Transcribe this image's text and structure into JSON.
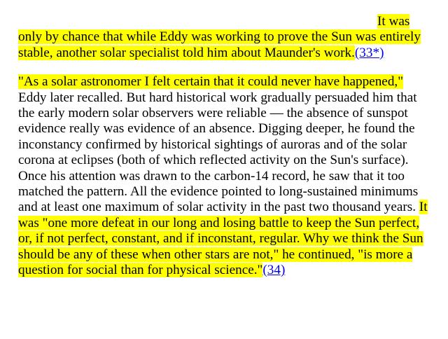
{
  "article": {
    "paragraph1": {
      "highlighted_text": "It was only by chance that while Eddy was working to prove the Sun was entirely stable, another solar specialist told him about Maunder's work.",
      "footnote_link": "(33*)"
    },
    "paragraph2": {
      "highlighted_quote": "\"As a solar astronomer I felt certain that it could never have happened,\"",
      "body_text": " Eddy later recalled. But hard historical work gradually persuaded him that the early modern solar observers were reliable — the absence of sunspot evidence really was evidence of an absence. Digging deeper, he found the inconstancy confirmed by historical sightings of auroras and of the solar corona at eclipses (both of which reflected activity on the Sun's surface). Once his attention was drawn to the carbon-14 record, he saw that it too matched the pattern. All the evidence pointed to long-sustained minimums and at least one maximum of solar activity in the past two thousand years. ",
      "highlighted_closing": "It was \"one more defeat in our long and losing battle to keep the Sun perfect, or, if not perfect, constant, and if inconstant, regular. Why we think the Sun should be any of these when other stars are not,\" he continued, \"is more a question for social than for physical science.\"",
      "footnote_link": "(34)"
    },
    "highlight_color": "#ffff00",
    "link_color": "#0000ee"
  }
}
